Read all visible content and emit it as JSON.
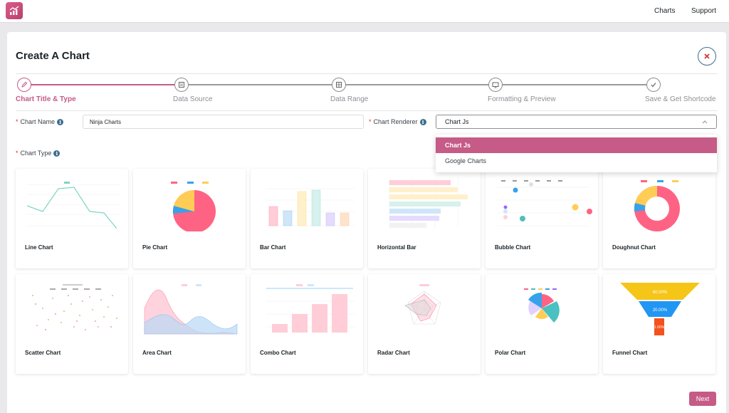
{
  "topbar": {
    "charts_label": "Charts",
    "support_label": "Support"
  },
  "header": {
    "title": "Create A Chart"
  },
  "steps": [
    {
      "label": "Chart Title & Type",
      "active": true
    },
    {
      "label": "Data Source",
      "active": false
    },
    {
      "label": "Data Range",
      "active": false
    },
    {
      "label": "Formatting & Preview",
      "active": false
    },
    {
      "label": "Save & Get Shortcode",
      "active": false
    }
  ],
  "form": {
    "required_mark": "*",
    "chart_name_label": "Chart Name",
    "chart_name_value": "Ninja Charts",
    "renderer_label": "Chart Renderer",
    "renderer_value": "Chart Js",
    "renderer_options": [
      "Chart Js",
      "Google Charts"
    ],
    "chart_type_label": "Chart Type",
    "info_glyph": "i"
  },
  "chart_types": [
    "Line Chart",
    "Pie Chart",
    "Bar Chart",
    "Horizontal Bar",
    "Bubble Chart",
    "Doughnut Chart",
    "Scatter Chart",
    "Area Chart",
    "Combo Chart",
    "Radar Chart",
    "Polar Chart",
    "Funnel Chart"
  ],
  "funnel_labels": [
    "60.00%",
    "20.00%",
    "1.00%"
  ],
  "footer": {
    "next_label": "Next"
  },
  "colors": {
    "accent": "#c55b86",
    "info": "#3c6e8f",
    "pink": "#ff6384",
    "blue": "#36a2eb",
    "yellow": "#ffcd56",
    "teal": "#4bc0c0",
    "purple": "#9966ff",
    "orange": "#ff9f40"
  }
}
